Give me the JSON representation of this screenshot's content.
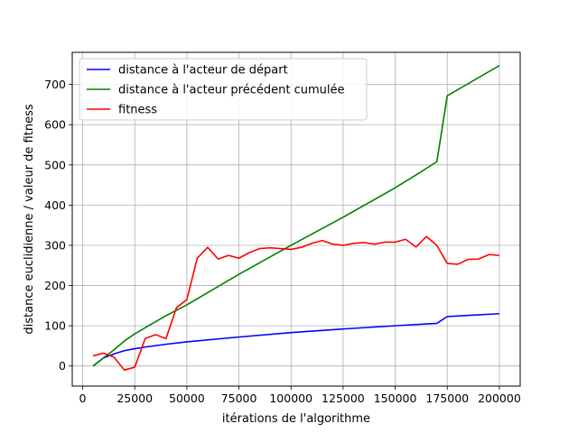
{
  "chart_data": {
    "type": "line",
    "title": "",
    "xlabel": "itérations de l'algorithme",
    "ylabel": "distance euclidienne / valeur de fitness",
    "xlim": [
      -5000,
      210000
    ],
    "ylim": [
      -50,
      780
    ],
    "grid": true,
    "legend_position": "top-left",
    "x_ticks": [
      0,
      25000,
      50000,
      75000,
      100000,
      125000,
      150000,
      175000,
      200000
    ],
    "x_tick_labels": [
      "0",
      "25000",
      "50000",
      "75000",
      "100000",
      "125000",
      "150000",
      "175000",
      "200000"
    ],
    "y_ticks": [
      0,
      100,
      200,
      300,
      400,
      500,
      600,
      700
    ],
    "y_tick_labels": [
      "0",
      "100",
      "200",
      "300",
      "400",
      "500",
      "600",
      "700"
    ],
    "series": [
      {
        "name": "distance à l'acteur de départ",
        "color": "#0000ff",
        "x": [
          5000,
          10000,
          15000,
          20000,
          25000,
          30000,
          40000,
          50000,
          75000,
          100000,
          125000,
          150000,
          170000,
          175000,
          200000
        ],
        "values": [
          0,
          20,
          30,
          38,
          43,
          47,
          54,
          60,
          72,
          83,
          92,
          100,
          106,
          123,
          130
        ]
      },
      {
        "name": "distance à l'acteur précédent cumulée",
        "color": "#008000",
        "x": [
          5000,
          10000,
          15000,
          20000,
          25000,
          30000,
          40000,
          50000,
          75000,
          100000,
          125000,
          150000,
          160000,
          170000,
          175000,
          200000
        ],
        "values": [
          0,
          20,
          40,
          62,
          80,
          95,
          125,
          152,
          228,
          300,
          370,
          443,
          475,
          508,
          672,
          747
        ]
      },
      {
        "name": "fitness",
        "color": "#ff0000",
        "x": [
          5000,
          10000,
          15000,
          20000,
          25000,
          30000,
          35000,
          40000,
          45000,
          50000,
          55000,
          60000,
          65000,
          70000,
          75000,
          80000,
          85000,
          90000,
          95000,
          100000,
          105000,
          110000,
          115000,
          120000,
          125000,
          130000,
          135000,
          140000,
          145000,
          150000,
          155000,
          160000,
          165000,
          170000,
          175000,
          180000,
          185000,
          190000,
          195000,
          200000
        ],
        "values": [
          25,
          32,
          22,
          -10,
          -3,
          68,
          78,
          68,
          145,
          165,
          268,
          295,
          266,
          275,
          268,
          282,
          292,
          294,
          292,
          290,
          295,
          305,
          312,
          303,
          300,
          305,
          307,
          303,
          308,
          308,
          315,
          296,
          322,
          300,
          255,
          253,
          265,
          266,
          277,
          275
        ]
      }
    ]
  }
}
